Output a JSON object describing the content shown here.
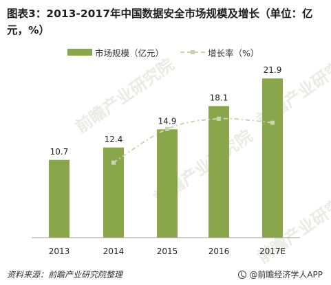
{
  "title": "图表3：2013-2017年中国数据安全市场规模及增长（单位：亿元，%）",
  "legend": {
    "bar_label": "市场规模（亿元）",
    "line_label": "增长率（%）"
  },
  "watermarks": [
    "前瞻产业研究院",
    "前瞻产业研究院",
    "前瞻产业研究院",
    "前瞻产业研究院"
  ],
  "source": "资料来源：前瞻产业研究院整理",
  "brand": "@前瞻经济学人APP",
  "colors": {
    "bar": "#8aa64a",
    "line": "#c8d4b2",
    "axis": "#999999"
  },
  "chart_data": {
    "type": "bar",
    "categories": [
      "2013",
      "2014",
      "2015",
      "2016",
      "2017E"
    ],
    "series": [
      {
        "name": "市场规模（亿元）",
        "type": "bar",
        "values": [
          10.7,
          12.4,
          14.9,
          18.1,
          21.9
        ],
        "data_labels": [
          "10.7",
          "12.4",
          "14.9",
          "18.1",
          "21.9"
        ]
      },
      {
        "name": "增长率（%）",
        "type": "line",
        "values": [
          null,
          15.9,
          20.2,
          21.5,
          21.0
        ]
      }
    ],
    "ylim": [
      0,
      24
    ],
    "legend": "top-center",
    "grid": false
  }
}
